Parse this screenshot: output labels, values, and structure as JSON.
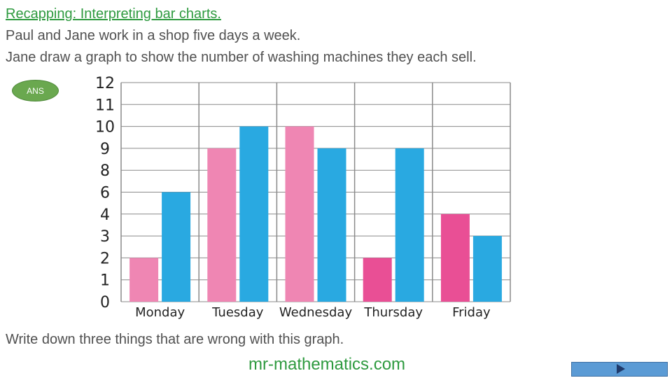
{
  "header": {
    "title": "Recapping: Interpreting bar charts.",
    "line1": "Paul and Jane work in a shop five days a week.",
    "line2": "Jane draw a graph to show the number of washing machines they each sell."
  },
  "ans_button": {
    "label": "ANS"
  },
  "question": "Write down three things that are wrong with this graph.",
  "brand": "mr-mathematics.com",
  "nav": {
    "next_icon": "play-arrow-icon"
  },
  "colors": {
    "pink": "#ef86b3",
    "dark_pink": "#e94f95",
    "blue": "#29a9e1",
    "grid": "#8a8a8a",
    "green": "#2e9a3f"
  },
  "chart_data": {
    "type": "bar",
    "categories": [
      "Monday",
      "Tuesday",
      "Wednesday",
      "Thursday",
      "Friday"
    ],
    "y_tick_labels": [
      "0",
      "1",
      "2",
      "3",
      "4",
      "6",
      "8",
      "9",
      "10",
      "11",
      "12"
    ],
    "series": [
      {
        "values": [
          "2",
          "9",
          "10",
          "2",
          "4"
        ],
        "colors": [
          "#ef86b3",
          "#ef86b3",
          "#ef86b3",
          "#e94f95",
          "#e94f95"
        ]
      },
      {
        "values": [
          "6",
          "10",
          "9",
          "9",
          "3"
        ],
        "colors": [
          "#29a9e1",
          "#29a9e1",
          "#29a9e1",
          "#29a9e1",
          "#29a9e1"
        ]
      }
    ],
    "title": "",
    "xlabel": "",
    "ylabel": "",
    "grid": true,
    "legend": "none"
  }
}
